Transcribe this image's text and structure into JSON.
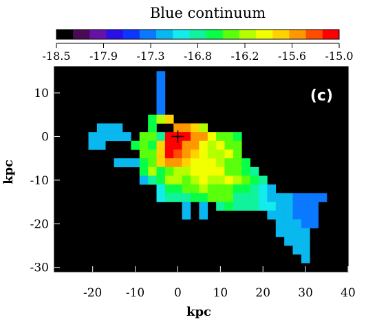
{
  "chart_data": {
    "type": "heatmap",
    "title": "Blue continuum",
    "panel_label": "(c)",
    "xlabel": "kpc",
    "ylabel": "kpc",
    "xlim": [
      -29,
      40
    ],
    "ylim": [
      -31,
      16
    ],
    "xticks": [
      "-20",
      "-10",
      "0",
      "10",
      "20",
      "30",
      "40"
    ],
    "yticks": [
      "10",
      "0",
      "-10",
      "-20",
      "-30"
    ],
    "colorbar": {
      "vmin": -18.5,
      "vmax": -15.0,
      "tick_labels": [
        "-18.5",
        "-17.9",
        "-17.3",
        "-16.8",
        "-16.2",
        "-15.6",
        "-15.0"
      ],
      "colors": [
        "#000000",
        "#4a0a55",
        "#6612a6",
        "#2a0fe8",
        "#0a36ff",
        "#0a79ff",
        "#09b8ee",
        "#13ecec",
        "#10f29c",
        "#08ff47",
        "#5aff0c",
        "#b4ff00",
        "#f2ff00",
        "#ffd200",
        "#ff9800",
        "#ff4d00",
        "#ff0000"
      ]
    },
    "background": "#000000",
    "cell_size_kpc": 2,
    "marker": {
      "type": "cross",
      "x": 0,
      "y": 0
    },
    "pixels": [
      {
        "x": -4,
        "y": 14,
        "v": -17.3
      },
      {
        "x": -4,
        "y": 12,
        "v": -17.3
      },
      {
        "x": -4,
        "y": 10,
        "v": -17.3
      },
      {
        "x": -4,
        "y": 8,
        "v": -17.3
      },
      {
        "x": -4,
        "y": 6,
        "v": -17.3
      },
      {
        "x": -6,
        "y": 4,
        "v": -16.6
      },
      {
        "x": -4,
        "y": 4,
        "v": -16.2
      },
      {
        "x": -2,
        "y": 4,
        "v": -15.8
      },
      {
        "x": -18,
        "y": 2,
        "v": -17.1
      },
      {
        "x": -16,
        "y": 2,
        "v": -17.1
      },
      {
        "x": -14,
        "y": 2,
        "v": -17.1
      },
      {
        "x": -6,
        "y": 2,
        "v": -16.5
      },
      {
        "x": 0,
        "y": 2,
        "v": -15.5
      },
      {
        "x": 2,
        "y": 2,
        "v": -15.5
      },
      {
        "x": 4,
        "y": 2,
        "v": -15.7
      },
      {
        "x": 6,
        "y": 2,
        "v": -16.2
      },
      {
        "x": -20,
        "y": 0,
        "v": -17.1
      },
      {
        "x": -18,
        "y": 0,
        "v": -17.1
      },
      {
        "x": -16,
        "y": 0,
        "v": -17.1
      },
      {
        "x": -14,
        "y": 0,
        "v": -17.1
      },
      {
        "x": -12,
        "y": 0,
        "v": -17.1
      },
      {
        "x": -8,
        "y": 0,
        "v": -16.4
      },
      {
        "x": -6,
        "y": 0,
        "v": -16.3
      },
      {
        "x": -4,
        "y": 0,
        "v": -16.7
      },
      {
        "x": -2,
        "y": 0,
        "v": -15.2
      },
      {
        "x": 0,
        "y": 0,
        "v": -15.1
      },
      {
        "x": 2,
        "y": 0,
        "v": -15.2
      },
      {
        "x": 4,
        "y": 0,
        "v": -15.6
      },
      {
        "x": 6,
        "y": 0,
        "v": -15.6
      },
      {
        "x": 8,
        "y": 0,
        "v": -16.0
      },
      {
        "x": 10,
        "y": 0,
        "v": -16.3
      },
      {
        "x": 12,
        "y": 0,
        "v": -16.3
      },
      {
        "x": 14,
        "y": 0,
        "v": -16.5
      },
      {
        "x": -20,
        "y": -2,
        "v": -17.1
      },
      {
        "x": -18,
        "y": -2,
        "v": -17.1
      },
      {
        "x": -10,
        "y": -2,
        "v": -16.6
      },
      {
        "x": -8,
        "y": -2,
        "v": -16.3
      },
      {
        "x": -6,
        "y": -2,
        "v": -16.6
      },
      {
        "x": -4,
        "y": -2,
        "v": -15.8
      },
      {
        "x": -2,
        "y": -2,
        "v": -15.2
      },
      {
        "x": 0,
        "y": -2,
        "v": -15.2
      },
      {
        "x": 2,
        "y": -2,
        "v": -15.5
      },
      {
        "x": 4,
        "y": -2,
        "v": -15.6
      },
      {
        "x": 6,
        "y": -2,
        "v": -15.9
      },
      {
        "x": 8,
        "y": -2,
        "v": -16.1
      },
      {
        "x": 10,
        "y": -2,
        "v": -16.0
      },
      {
        "x": 12,
        "y": -2,
        "v": -16.3
      },
      {
        "x": 14,
        "y": -2,
        "v": -16.4
      },
      {
        "x": -8,
        "y": -4,
        "v": -16.4
      },
      {
        "x": -6,
        "y": -4,
        "v": -16.4
      },
      {
        "x": -4,
        "y": -4,
        "v": -15.7
      },
      {
        "x": -2,
        "y": -4,
        "v": -15.2
      },
      {
        "x": 0,
        "y": -4,
        "v": -15.3
      },
      {
        "x": 2,
        "y": -4,
        "v": -15.6
      },
      {
        "x": 4,
        "y": -4,
        "v": -15.7
      },
      {
        "x": 6,
        "y": -4,
        "v": -16.0
      },
      {
        "x": 8,
        "y": -4,
        "v": -16.1
      },
      {
        "x": 10,
        "y": -4,
        "v": -16.2
      },
      {
        "x": 12,
        "y": -4,
        "v": -16.0
      },
      {
        "x": 14,
        "y": -4,
        "v": -16.3
      },
      {
        "x": -14,
        "y": -6,
        "v": -17.2
      },
      {
        "x": -12,
        "y": -6,
        "v": -17.2
      },
      {
        "x": -10,
        "y": -6,
        "v": -17.2
      },
      {
        "x": -8,
        "y": -6,
        "v": -16.6
      },
      {
        "x": -6,
        "y": -6,
        "v": -16.4
      },
      {
        "x": -4,
        "y": -6,
        "v": -15.7
      },
      {
        "x": -2,
        "y": -6,
        "v": -15.5
      },
      {
        "x": 0,
        "y": -6,
        "v": -15.6
      },
      {
        "x": 2,
        "y": -6,
        "v": -15.7
      },
      {
        "x": 4,
        "y": -6,
        "v": -15.9
      },
      {
        "x": 6,
        "y": -6,
        "v": -16.0
      },
      {
        "x": 8,
        "y": -6,
        "v": -15.9
      },
      {
        "x": 10,
        "y": -6,
        "v": -16.1
      },
      {
        "x": 12,
        "y": -6,
        "v": -16.3
      },
      {
        "x": 14,
        "y": -6,
        "v": -16.3
      },
      {
        "x": 16,
        "y": -6,
        "v": -16.6
      },
      {
        "x": -8,
        "y": -8,
        "v": -16.6
      },
      {
        "x": -6,
        "y": -8,
        "v": -16.2
      },
      {
        "x": -4,
        "y": -8,
        "v": -16.5
      },
      {
        "x": -2,
        "y": -8,
        "v": -16.3
      },
      {
        "x": 0,
        "y": -8,
        "v": -16.1
      },
      {
        "x": 2,
        "y": -8,
        "v": -16.2
      },
      {
        "x": 4,
        "y": -8,
        "v": -15.9
      },
      {
        "x": 6,
        "y": -8,
        "v": -16.0
      },
      {
        "x": 8,
        "y": -8,
        "v": -16.0
      },
      {
        "x": 10,
        "y": -8,
        "v": -15.9
      },
      {
        "x": 12,
        "y": -8,
        "v": -16.4
      },
      {
        "x": 14,
        "y": -8,
        "v": -16.3
      },
      {
        "x": 16,
        "y": -8,
        "v": -16.5
      },
      {
        "x": 18,
        "y": -8,
        "v": -16.7
      },
      {
        "x": -8,
        "y": -10,
        "v": -17.1
      },
      {
        "x": -6,
        "y": -10,
        "v": -16.8
      },
      {
        "x": -4,
        "y": -10,
        "v": -16.5
      },
      {
        "x": -2,
        "y": -10,
        "v": -16.2
      },
      {
        "x": 0,
        "y": -10,
        "v": -16.1
      },
      {
        "x": 2,
        "y": -10,
        "v": -16.3
      },
      {
        "x": 4,
        "y": -10,
        "v": -16.2
      },
      {
        "x": 6,
        "y": -10,
        "v": -16.0
      },
      {
        "x": 8,
        "y": -10,
        "v": -16.1
      },
      {
        "x": 10,
        "y": -10,
        "v": -16.2
      },
      {
        "x": 12,
        "y": -10,
        "v": -16.0
      },
      {
        "x": 14,
        "y": -10,
        "v": -16.2
      },
      {
        "x": 16,
        "y": -10,
        "v": -16.4
      },
      {
        "x": 18,
        "y": -10,
        "v": -16.6
      },
      {
        "x": 20,
        "y": -10,
        "v": -16.8
      },
      {
        "x": -4,
        "y": -12,
        "v": -16.9
      },
      {
        "x": -2,
        "y": -12,
        "v": -16.6
      },
      {
        "x": 0,
        "y": -12,
        "v": -16.5
      },
      {
        "x": 2,
        "y": -12,
        "v": -16.3
      },
      {
        "x": 4,
        "y": -12,
        "v": -16.4
      },
      {
        "x": 6,
        "y": -12,
        "v": -16.2
      },
      {
        "x": 8,
        "y": -12,
        "v": -16.3
      },
      {
        "x": 10,
        "y": -12,
        "v": -16.4
      },
      {
        "x": 12,
        "y": -12,
        "v": -16.3
      },
      {
        "x": 14,
        "y": -12,
        "v": -16.5
      },
      {
        "x": 16,
        "y": -12,
        "v": -16.6
      },
      {
        "x": 18,
        "y": -12,
        "v": -16.7
      },
      {
        "x": 20,
        "y": -12,
        "v": -16.9
      },
      {
        "x": 22,
        "y": -12,
        "v": -17.1
      },
      {
        "x": -4,
        "y": -14,
        "v": -16.9
      },
      {
        "x": -2,
        "y": -14,
        "v": -16.7
      },
      {
        "x": 0,
        "y": -14,
        "v": -16.7
      },
      {
        "x": 2,
        "y": -14,
        "v": -16.7
      },
      {
        "x": 4,
        "y": -14,
        "v": -16.6
      },
      {
        "x": 6,
        "y": -14,
        "v": -16.6
      },
      {
        "x": 8,
        "y": -14,
        "v": -16.4
      },
      {
        "x": 10,
        "y": -14,
        "v": -16.3
      },
      {
        "x": 12,
        "y": -14,
        "v": -16.4
      },
      {
        "x": 14,
        "y": -14,
        "v": -16.8
      },
      {
        "x": 16,
        "y": -14,
        "v": -16.8
      },
      {
        "x": 18,
        "y": -14,
        "v": -16.8
      },
      {
        "x": 20,
        "y": -14,
        "v": -16.9
      },
      {
        "x": 22,
        "y": -14,
        "v": -17.1
      },
      {
        "x": 24,
        "y": -14,
        "v": -17.1
      },
      {
        "x": 26,
        "y": -14,
        "v": -17.1
      },
      {
        "x": 28,
        "y": -14,
        "v": -17.4
      },
      {
        "x": 30,
        "y": -14,
        "v": -17.4
      },
      {
        "x": 32,
        "y": -14,
        "v": -17.4
      },
      {
        "x": 34,
        "y": -14,
        "v": -17.4
      },
      {
        "x": 2,
        "y": -16,
        "v": -17.1
      },
      {
        "x": 6,
        "y": -16,
        "v": -17.1
      },
      {
        "x": 10,
        "y": -16,
        "v": -16.8
      },
      {
        "x": 12,
        "y": -16,
        "v": -16.6
      },
      {
        "x": 14,
        "y": -16,
        "v": -16.8
      },
      {
        "x": 16,
        "y": -16,
        "v": -16.8
      },
      {
        "x": 18,
        "y": -16,
        "v": -16.8
      },
      {
        "x": 20,
        "y": -16,
        "v": -16.9
      },
      {
        "x": 22,
        "y": -16,
        "v": -17.0
      },
      {
        "x": 24,
        "y": -16,
        "v": -17.1
      },
      {
        "x": 26,
        "y": -16,
        "v": -17.1
      },
      {
        "x": 28,
        "y": -16,
        "v": -17.4
      },
      {
        "x": 30,
        "y": -16,
        "v": -17.4
      },
      {
        "x": 32,
        "y": -16,
        "v": -17.4
      },
      {
        "x": 2,
        "y": -18,
        "v": -17.1
      },
      {
        "x": 6,
        "y": -18,
        "v": -17.1
      },
      {
        "x": 22,
        "y": -18,
        "v": -17.1
      },
      {
        "x": 24,
        "y": -18,
        "v": -17.1
      },
      {
        "x": 26,
        "y": -18,
        "v": -17.1
      },
      {
        "x": 28,
        "y": -18,
        "v": -17.4
      },
      {
        "x": 30,
        "y": -18,
        "v": -17.4
      },
      {
        "x": 32,
        "y": -18,
        "v": -17.4
      },
      {
        "x": 24,
        "y": -20,
        "v": -17.1
      },
      {
        "x": 26,
        "y": -20,
        "v": -17.1
      },
      {
        "x": 28,
        "y": -20,
        "v": -17.1
      },
      {
        "x": 30,
        "y": -20,
        "v": -17.4
      },
      {
        "x": 32,
        "y": -20,
        "v": -17.4
      },
      {
        "x": 24,
        "y": -22,
        "v": -17.1
      },
      {
        "x": 26,
        "y": -22,
        "v": -17.1
      },
      {
        "x": 28,
        "y": -22,
        "v": -17.1
      },
      {
        "x": 30,
        "y": -22,
        "v": -17.1
      },
      {
        "x": 26,
        "y": -24,
        "v": -17.1
      },
      {
        "x": 28,
        "y": -24,
        "v": -17.1
      },
      {
        "x": 30,
        "y": -24,
        "v": -17.1
      },
      {
        "x": 28,
        "y": -26,
        "v": -17.1
      },
      {
        "x": 30,
        "y": -26,
        "v": -17.1
      },
      {
        "x": 30,
        "y": -28,
        "v": -17.1
      }
    ]
  }
}
